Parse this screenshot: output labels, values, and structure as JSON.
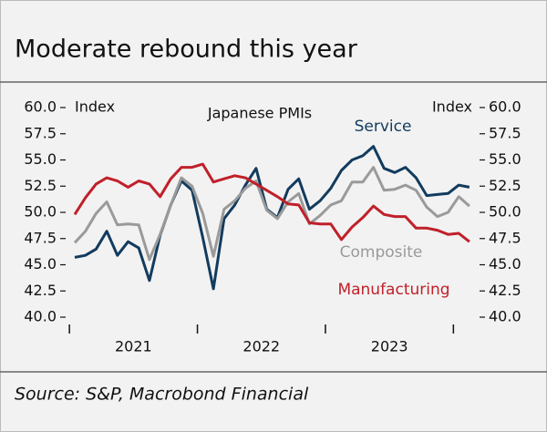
{
  "chart_data": {
    "type": "line",
    "title": "Moderate rebound this year",
    "subtitle": "Japanese PMIs",
    "y_label": "Index",
    "y2_label": "Index",
    "source": "Source: S&P, Macrobond Financial",
    "x_labels": [
      "2021",
      "2022",
      "2023"
    ],
    "categories": [
      null,
      null,
      null,
      null,
      null,
      null,
      null,
      null,
      null,
      null,
      null,
      null,
      null,
      null,
      null,
      null,
      null,
      null,
      null,
      null,
      null,
      null,
      null,
      null,
      null,
      null,
      null,
      null,
      null,
      null,
      null,
      null,
      null,
      null,
      null,
      null,
      null,
      null
    ],
    "ylim": [
      40,
      60
    ],
    "yticks": [
      {
        "value": 60,
        "label": "60.0"
      },
      {
        "value": 57.5,
        "label": "57.5"
      },
      {
        "value": 55,
        "label": "55.0"
      },
      {
        "value": 52.5,
        "label": "52.5"
      },
      {
        "value": 50,
        "label": "50.0"
      },
      {
        "value": 47.5,
        "label": "47.5"
      },
      {
        "value": 45,
        "label": "45.0"
      },
      {
        "value": 42.5,
        "label": "42.5"
      },
      {
        "value": 40,
        "label": "40.0"
      }
    ],
    "series": [
      {
        "name": "Service",
        "color": "#123b5e",
        "values": [
          45.7,
          45.9,
          46.5,
          48.2,
          45.9,
          47.2,
          46.6,
          43.5,
          47.8,
          50.7,
          53.0,
          52.1,
          47.6,
          42.7,
          49.4,
          50.7,
          52.6,
          54.2,
          50.3,
          49.5,
          52.2,
          53.2,
          50.3,
          51.1,
          52.3,
          54.0,
          55.0,
          55.4,
          56.3,
          54.2,
          53.8,
          54.3,
          53.3,
          51.6,
          51.7,
          51.8,
          52.6,
          52.4
        ]
      },
      {
        "name": "Composite",
        "color": "#9a9a9a",
        "values": [
          47.1,
          48.2,
          49.9,
          51.0,
          48.8,
          48.9,
          48.8,
          45.5,
          47.9,
          50.7,
          53.3,
          52.5,
          49.9,
          45.8,
          50.3,
          51.1,
          52.3,
          53.0,
          50.2,
          49.4,
          51.0,
          51.8,
          48.9,
          49.7,
          50.7,
          51.1,
          52.9,
          52.9,
          54.3,
          52.1,
          52.2,
          52.6,
          52.1,
          50.5,
          49.6,
          50.0,
          51.5,
          50.6
        ]
      },
      {
        "name": "Manufacturing",
        "color": "#c0202a",
        "values": [
          49.8,
          51.4,
          52.7,
          53.3,
          53.0,
          52.4,
          53.0,
          52.7,
          51.5,
          53.2,
          54.3,
          54.3,
          54.6,
          52.9,
          53.2,
          53.5,
          53.3,
          52.7,
          52.1,
          51.5,
          50.8,
          50.7,
          49.0,
          48.9,
          48.9,
          47.4,
          48.6,
          49.5,
          50.6,
          49.8,
          49.6,
          49.6,
          48.5,
          48.5,
          48.3,
          47.9,
          48.0,
          47.2
        ]
      }
    ]
  }
}
